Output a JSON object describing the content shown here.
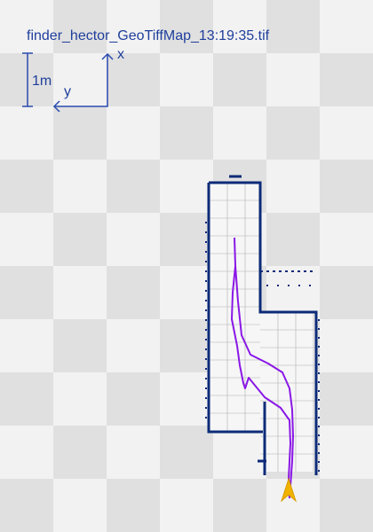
{
  "title": "finder_hector_GeoTiffMap_13:19:35.tif",
  "scale_label": "1m",
  "axis_x_label": "x",
  "axis_y_label": "y",
  "colors": {
    "checker_light": "#f2f2f2",
    "checker_dark": "#e0e0e0",
    "free_space": "#f5f5f5",
    "grid_line": "#b0b0b0",
    "obstacle": "#0d2b78",
    "axis": "#2a4bb0",
    "path": "#8a17e6",
    "robot": "#f2b300",
    "text": "#1f3e9c"
  },
  "icons": {
    "robot": "robot-arrow-icon"
  }
}
